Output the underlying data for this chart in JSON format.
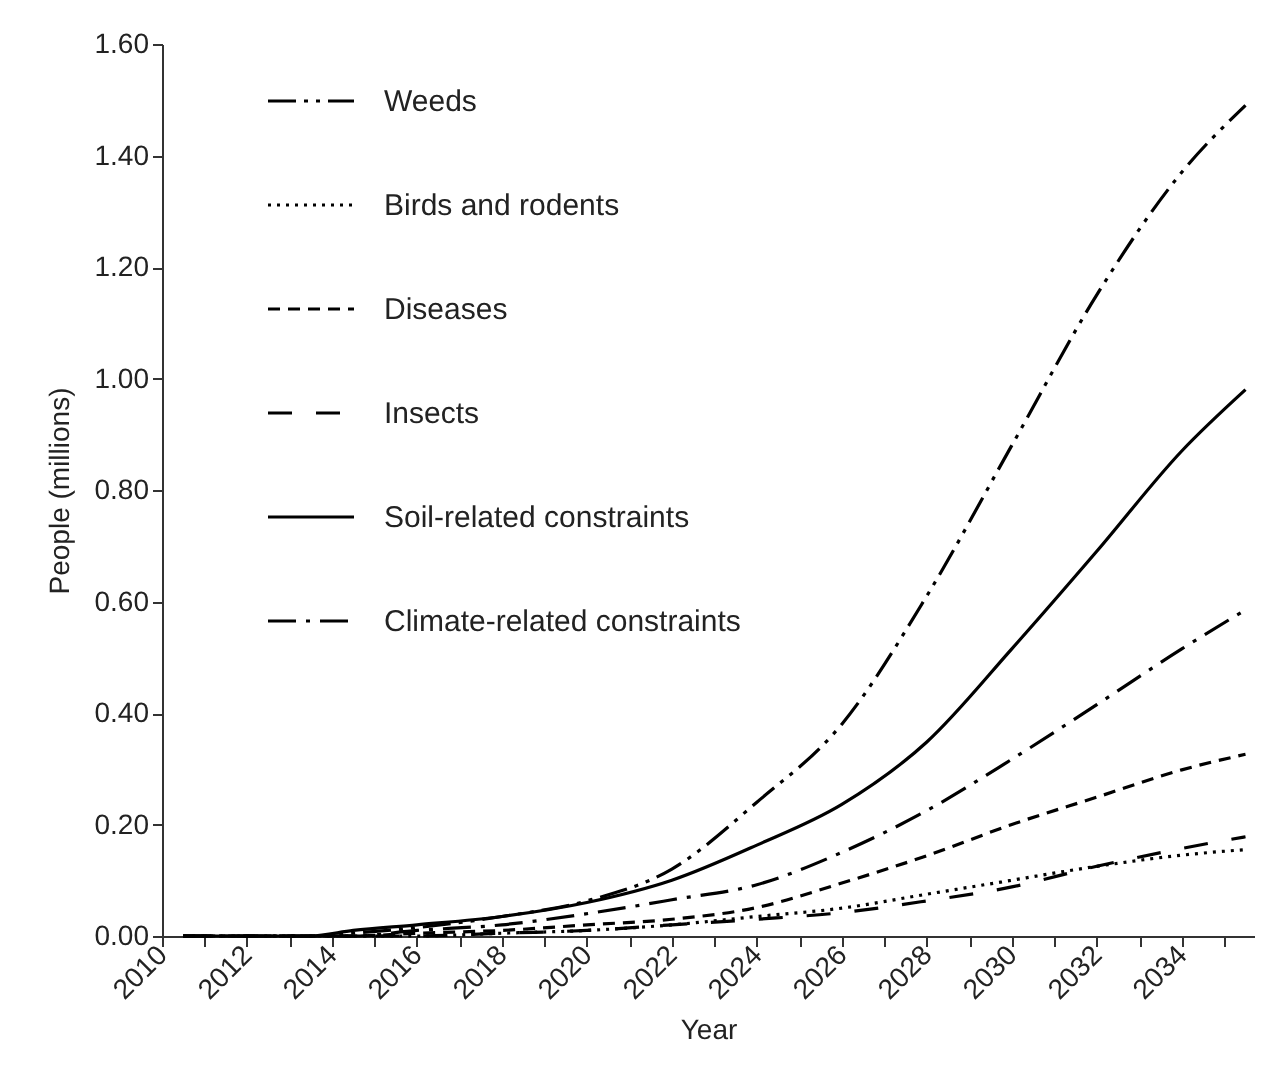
{
  "chart_data": {
    "type": "line",
    "xlabel": "Year",
    "ylabel": "People (millions)",
    "legend": "top left",
    "grid": false,
    "marker": "none",
    "x": [
      2010.5,
      2012,
      2013.5,
      2014.5,
      2016,
      2018,
      2020,
      2022,
      2024,
      2026,
      2028,
      2030,
      2032,
      2034,
      2035.5
    ],
    "xlim": [
      2010,
      2035.7
    ],
    "xticks": [
      2010,
      {
        "value": 2011,
        "label": null
      },
      2012,
      {
        "value": 2013,
        "label": null
      },
      2014,
      {
        "value": 2015,
        "label": null
      },
      2016,
      {
        "value": 2017,
        "label": null
      },
      2018,
      {
        "value": 2019,
        "label": null
      },
      2020,
      {
        "value": 2021,
        "label": null
      },
      2022,
      {
        "value": 2023,
        "label": null
      },
      2024,
      {
        "value": 2025,
        "label": null
      },
      2026,
      {
        "value": 2027,
        "label": null
      },
      2028,
      {
        "value": 2029,
        "label": null
      },
      2030,
      {
        "value": 2031,
        "label": null
      },
      2032,
      {
        "value": 2033,
        "label": null
      },
      2034,
      {
        "value": 2035,
        "label": null
      }
    ],
    "ylim": [
      0,
      1.6
    ],
    "yticks": [
      {
        "value": 0,
        "label": "0.00"
      },
      {
        "value": 0.2,
        "label": "0.20"
      },
      {
        "value": 0.4,
        "label": "0.40"
      },
      {
        "value": 0.6,
        "label": "0.60"
      },
      {
        "value": 0.8,
        "label": "0.80"
      },
      {
        "value": 1,
        "label": "1.00"
      },
      {
        "value": 1.2,
        "label": "1.20"
      },
      {
        "value": 1.4,
        "label": "1.40"
      },
      {
        "value": 1.6,
        "label": "1.60"
      }
    ],
    "series": [
      {
        "name": "Weeds",
        "color": "#000000",
        "line_style": "dashdotdot",
        "values": [
          0,
          0,
          0,
          0.005,
          0.015,
          0.035,
          0.063,
          0.12,
          0.24,
          0.38,
          0.61,
          0.88,
          1.15,
          1.37,
          1.49
        ]
      },
      {
        "name": "Birds and rodents",
        "color": "#000000",
        "line_style": "dotted",
        "values": [
          0,
          0,
          0,
          0,
          0,
          0.005,
          0.01,
          0.02,
          0.035,
          0.05,
          0.075,
          0.1,
          0.125,
          0.145,
          0.155
        ]
      },
      {
        "name": "Diseases",
        "color": "#000000",
        "line_style": "dashed",
        "values": [
          0,
          0,
          0,
          0,
          0.005,
          0.01,
          0.02,
          0.03,
          0.051,
          0.095,
          0.144,
          0.2,
          0.249,
          0.298,
          0.326
        ]
      },
      {
        "name": "Insects",
        "color": "#000000",
        "line_style": "longdash",
        "values": [
          0,
          0,
          0,
          0,
          0,
          0.005,
          0.01,
          0.02,
          0.03,
          0.042,
          0.063,
          0.088,
          0.125,
          0.157,
          0.178
        ]
      },
      {
        "name": "Soil-related constraints",
        "color": "#000000",
        "line_style": "solid",
        "values": [
          0,
          0,
          0,
          0.01,
          0.02,
          0.035,
          0.06,
          0.1,
          0.163,
          0.236,
          0.348,
          0.515,
          0.69,
          0.87,
          0.98
        ]
      },
      {
        "name": "Climate-related constraints",
        "color": "#000000",
        "line_style": "dashdot",
        "values": [
          0,
          0,
          0,
          0,
          0.01,
          0.02,
          0.04,
          0.065,
          0.092,
          0.15,
          0.225,
          0.317,
          0.415,
          0.515,
          0.585
        ]
      }
    ]
  }
}
